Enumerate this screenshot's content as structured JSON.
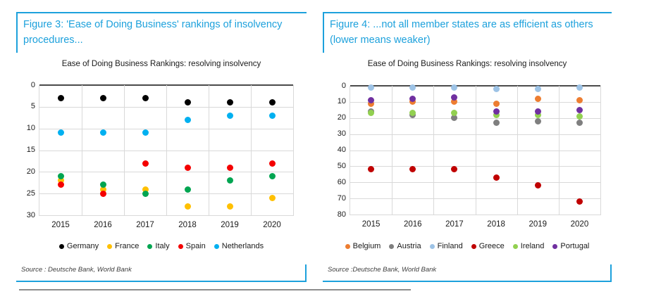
{
  "page": {
    "background": "#ffffff",
    "accent_blue": "#1da1dc"
  },
  "figures": [
    {
      "title_lines": [
        "Figure 3: 'Ease of Doing Business' rankings of insolvency",
        "procedures..."
      ],
      "source": "Source : Deutsche Bank, World Bank"
    },
    {
      "title_lines": [
        "Figure 4: ...not all member states are as efficient as others",
        "(lower means weaker)"
      ],
      "source": "Source :Deutsche Bank, World Bank"
    }
  ],
  "chart_data": [
    {
      "type": "scatter",
      "title": "Ease of Doing Business Rankings: resolving insolvency",
      "categories": [
        "2015",
        "2016",
        "2017",
        "2018",
        "2019",
        "2020"
      ],
      "xlabel": "",
      "ylabel": "",
      "ylim": [
        0,
        30
      ],
      "yticks": [
        0,
        5,
        10,
        15,
        20,
        25,
        30
      ],
      "y_inverted": true,
      "grid": true,
      "legend_position": "bottom",
      "series": [
        {
          "name": "Germany",
          "color": "#000000",
          "values": [
            3,
            3,
            3,
            4,
            4,
            4
          ]
        },
        {
          "name": "France",
          "color": "#FFC000",
          "values": [
            22,
            24,
            24,
            28,
            28,
            26
          ]
        },
        {
          "name": "Italy",
          "color": "#00A551",
          "values": [
            21,
            23,
            25,
            24,
            22,
            21
          ]
        },
        {
          "name": "Spain",
          "color": "#F40000",
          "values": [
            23,
            25,
            18,
            19,
            19,
            18
          ]
        },
        {
          "name": "Netherlands",
          "color": "#00B0F0",
          "values": [
            11,
            11,
            11,
            8,
            7,
            7
          ]
        }
      ]
    },
    {
      "type": "scatter",
      "title": "Ease of Doing Business Rankings: resolving insolvency",
      "categories": [
        "2015",
        "2016",
        "2017",
        "2018",
        "2019",
        "2020"
      ],
      "xlabel": "",
      "ylabel": "",
      "ylim": [
        0,
        80
      ],
      "yticks": [
        0,
        10,
        20,
        30,
        40,
        50,
        60,
        70,
        80
      ],
      "y_inverted": true,
      "grid": true,
      "legend_position": "bottom",
      "series": [
        {
          "name": "Belgium",
          "color": "#ED7D31",
          "values": [
            11,
            10,
            10,
            11,
            8,
            9
          ]
        },
        {
          "name": "Austria",
          "color": "#7F7F7F",
          "values": [
            16,
            18,
            20,
            23,
            22,
            23
          ]
        },
        {
          "name": "Finland",
          "color": "#9DC3E6",
          "values": [
            1,
            1,
            1,
            2,
            2,
            1
          ]
        },
        {
          "name": "Greece",
          "color": "#C00000",
          "values": [
            52,
            52,
            52,
            57,
            62,
            72
          ]
        },
        {
          "name": "Ireland",
          "color": "#92D050",
          "values": [
            17,
            17,
            17,
            18,
            18,
            19
          ]
        },
        {
          "name": "Portugal",
          "color": "#7030A0",
          "values": [
            9,
            8,
            7,
            16,
            16,
            15
          ]
        }
      ]
    }
  ]
}
